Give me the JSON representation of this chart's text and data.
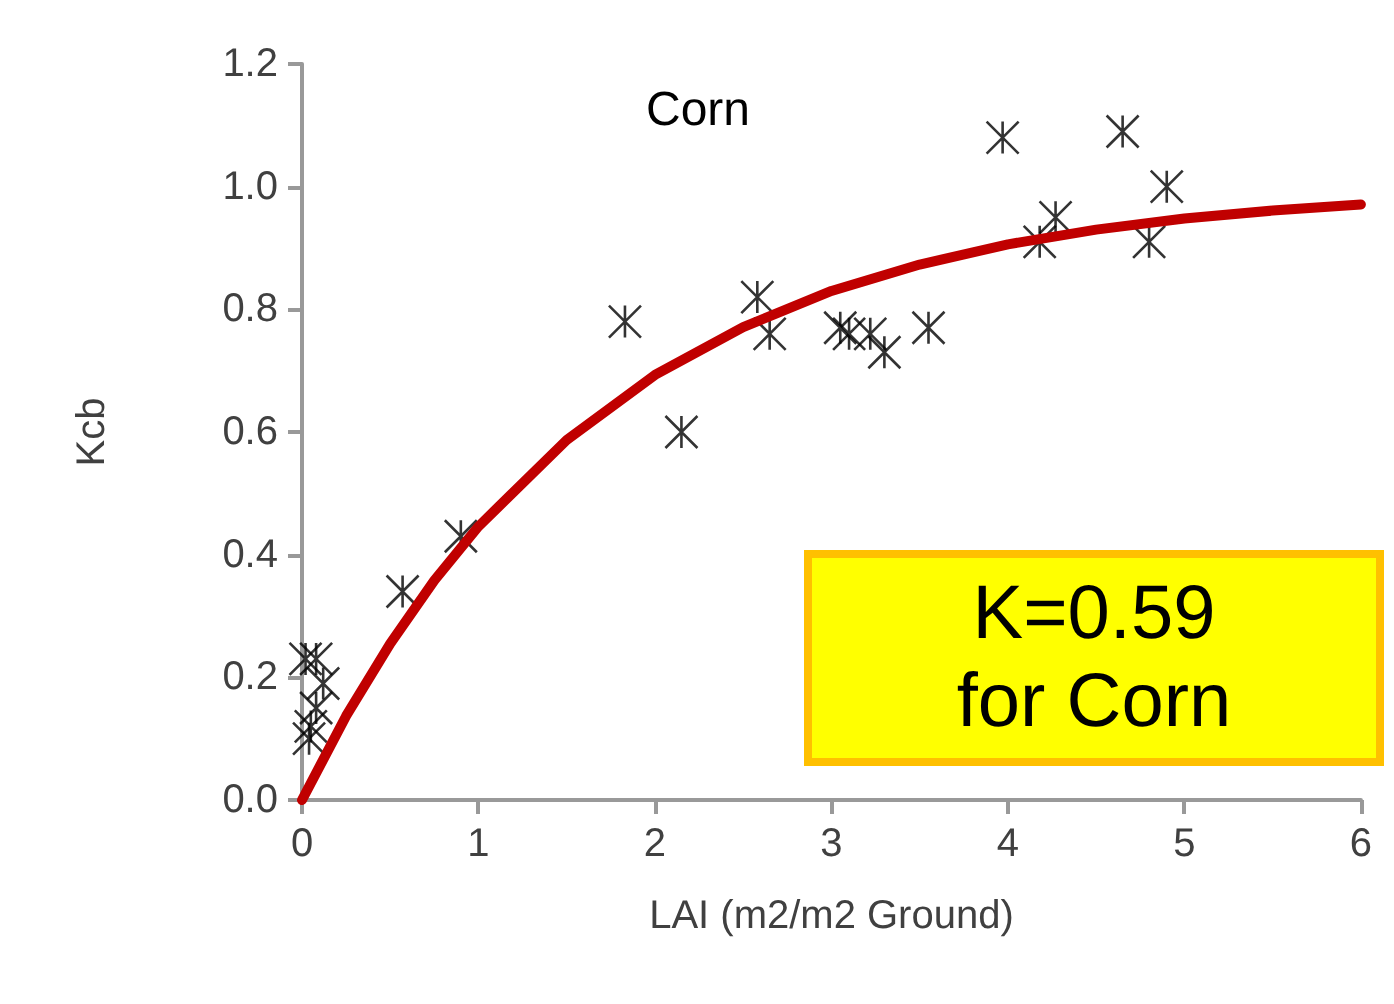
{
  "chart_data": {
    "type": "scatter",
    "title": "Corn",
    "xlabel": "LAI (m2/m2 Ground)",
    "ylabel": "Kcb",
    "xlim": [
      0,
      6
    ],
    "xticks": [
      0,
      1,
      2,
      3,
      4,
      5,
      6
    ],
    "ylim": [
      0,
      1.2
    ],
    "yticks": [
      {
        "value": 0,
        "label": "0.0"
      },
      {
        "value": 0.2,
        "label": "0.2"
      },
      {
        "value": 0.4,
        "label": "0.4"
      },
      {
        "value": 0.6,
        "label": "0.6"
      },
      {
        "value": 0.8,
        "label": "0.8"
      },
      {
        "value": 1,
        "label": "1.0"
      },
      {
        "value": 1.2,
        "label": "1.2"
      }
    ],
    "grid": false,
    "marker": "cross",
    "series": [
      {
        "color": "#000000",
        "x": [
          0.02,
          0.08,
          0.05,
          0.04,
          0.08,
          0.12,
          0.57,
          0.9,
          1.83,
          2.15,
          2.58,
          2.65,
          3.05,
          3.1,
          3.22,
          3.3,
          3.55,
          3.97,
          4.18,
          4.27,
          4.65,
          4.8,
          4.9
        ],
        "values": [
          0.23,
          0.23,
          0.12,
          0.1,
          0.15,
          0.19,
          0.34,
          0.43,
          0.78,
          0.6,
          0.82,
          0.76,
          0.77,
          0.76,
          0.76,
          0.73,
          0.77,
          1.08,
          0.91,
          0.95,
          1.09,
          0.91,
          1.0
        ]
      },
      {
        "type": "line",
        "color": "#c00000",
        "line_style": "solid",
        "marker": "none",
        "x": [
          0,
          0.25,
          0.5,
          0.75,
          1,
          1.5,
          2,
          2.5,
          3,
          3.5,
          4,
          4.5,
          5,
          5.5,
          6
        ],
        "values": [
          0,
          0.137,
          0.255,
          0.358,
          0.446,
          0.587,
          0.693,
          0.771,
          0.83,
          0.873,
          0.906,
          0.93,
          0.948,
          0.961,
          0.971
        ]
      }
    ],
    "annotations": [
      "K=0.59\nfor Corn"
    ]
  }
}
